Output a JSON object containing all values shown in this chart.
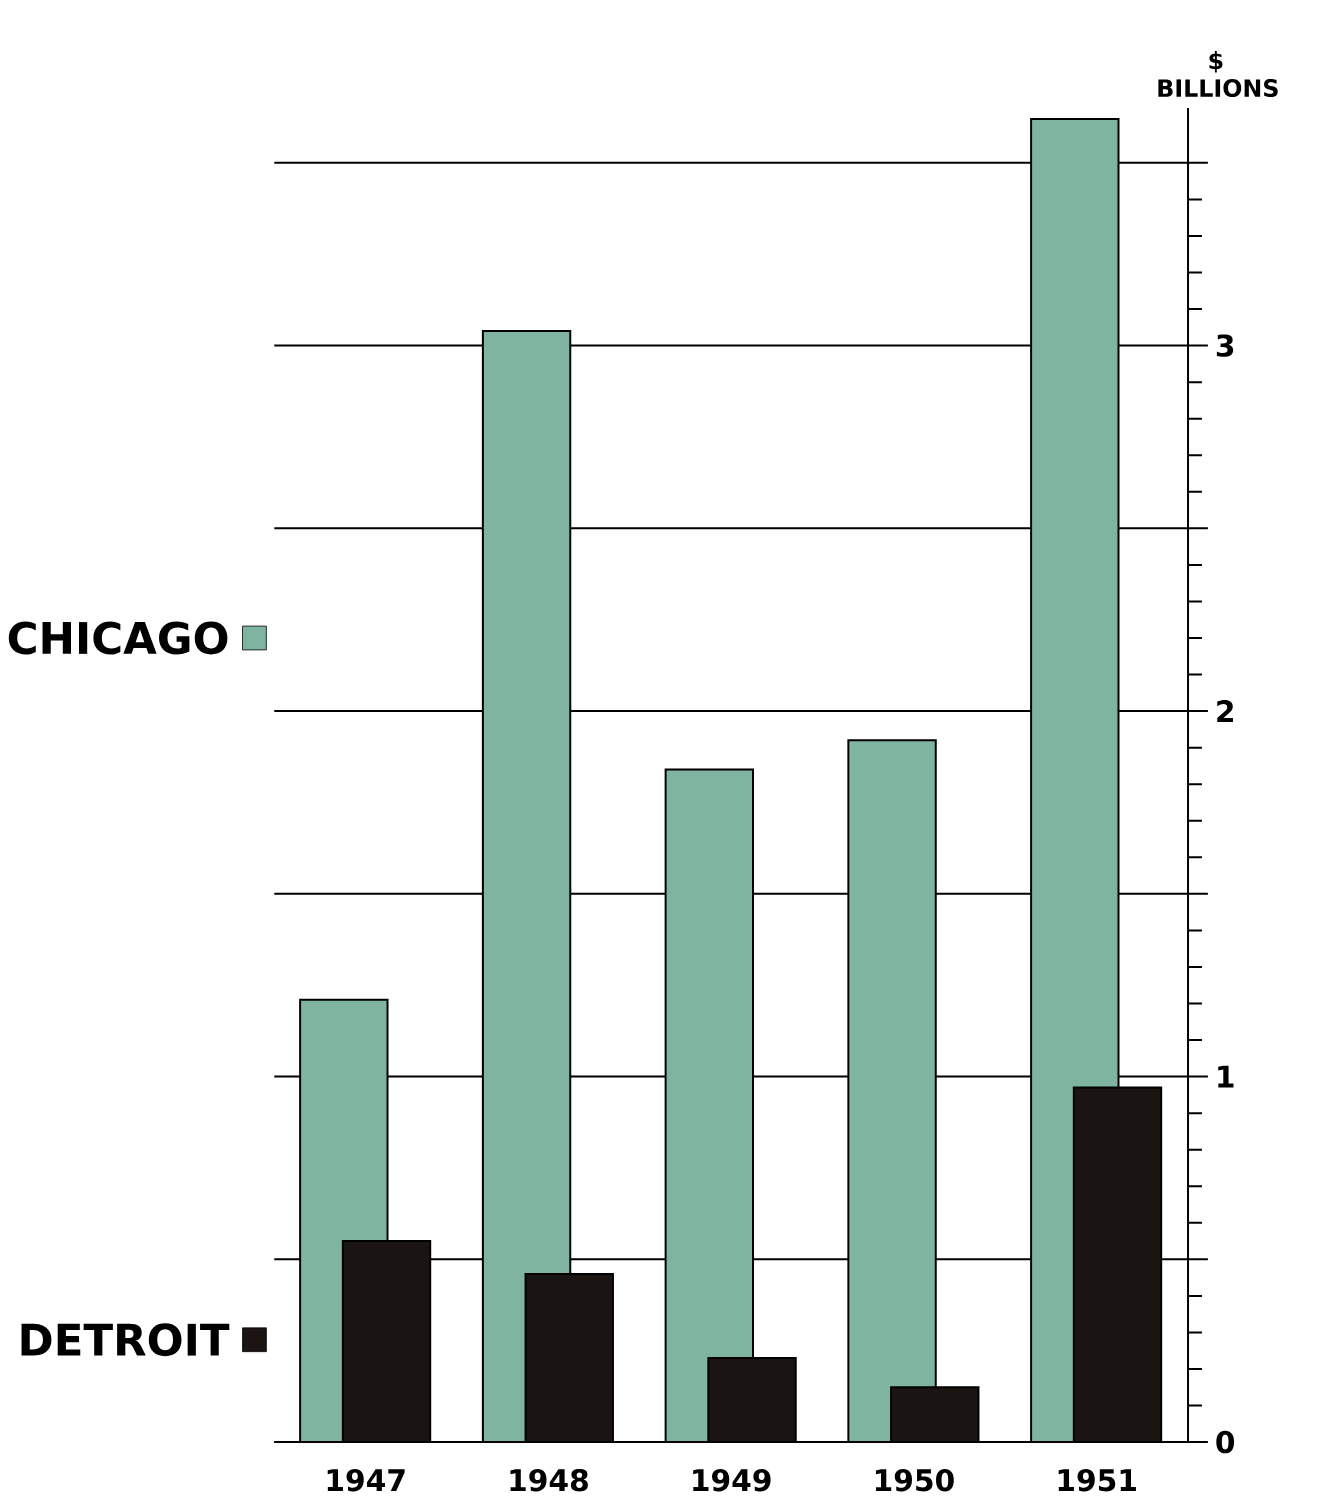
{
  "chart_data": {
    "type": "bar",
    "ylabel": "$ BILLIONS",
    "categories": [
      "1947",
      "1948",
      "1949",
      "1950",
      "1951"
    ],
    "series": [
      {
        "name": "CHICAGO",
        "color": "#7fb5a0",
        "values": [
          1.21,
          3.04,
          1.84,
          1.92,
          3.62
        ]
      },
      {
        "name": "DETROIT",
        "color": "#1a1412",
        "values": [
          0.55,
          0.46,
          0.23,
          0.15,
          0.97
        ]
      }
    ],
    "ylim": [
      0,
      3.65
    ],
    "yticks": [
      0,
      {
        "value": 0.5,
        "label": null
      },
      1,
      {
        "value": 1.5,
        "label": null
      },
      2,
      {
        "value": 2.5,
        "label": null
      },
      3,
      {
        "value": 3.5,
        "label": null
      }
    ],
    "grid": "y",
    "legend": "left"
  }
}
